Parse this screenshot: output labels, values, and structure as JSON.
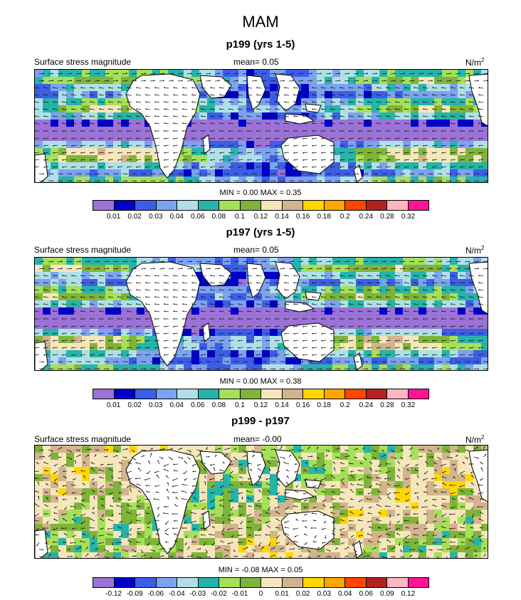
{
  "figure_title": "MAM",
  "colors": {
    "land": "#ffffff",
    "arrow": "#1a1a1a",
    "palette": [
      "#9b72d6",
      "#0000c8",
      "#3c5ee6",
      "#7ca2f0",
      "#b0e0e6",
      "#26b4aa",
      "#a6e05a",
      "#7fb43a",
      "#f5e6bc",
      "#d2b48c",
      "#ffd700",
      "#ffa500",
      "#ff4500",
      "#b22222",
      "#ffb6c1",
      "#ff1493"
    ]
  },
  "chart_data": [
    {
      "type": "heatmap",
      "title": "p199 (yrs 1-5)",
      "left_label": "Surface stress magnitude",
      "mean_text": "mean=   0.05",
      "units_base": "N/m",
      "units_exp": "2",
      "min_max_text": "MIN =   0.00 MAX =   0.35",
      "colorbar_labels": [
        "0.01",
        "0.02",
        "0.03",
        "0.04",
        "0.06",
        "0.08",
        "0.1",
        "0.12",
        "0.14",
        "0.16",
        "0.18",
        "0.2",
        "0.24",
        "0.28",
        "0.32"
      ],
      "min": 0.0,
      "max": 0.35,
      "mean": 0.05
    },
    {
      "type": "heatmap",
      "title": "p197 (yrs 1-5)",
      "left_label": "Surface stress magnitude",
      "mean_text": "mean=   0.05",
      "units_base": "N/m",
      "units_exp": "2",
      "min_max_text": "MIN =   0.00 MAX =   0.38",
      "colorbar_labels": [
        "0.01",
        "0.02",
        "0.03",
        "0.04",
        "0.06",
        "0.08",
        "0.1",
        "0.12",
        "0.14",
        "0.16",
        "0.18",
        "0.2",
        "0.24",
        "0.28",
        "0.32"
      ],
      "min": 0.0,
      "max": 0.38,
      "mean": 0.05
    },
    {
      "type": "heatmap",
      "title": "p199 - p197",
      "left_label": "Surface stress magnitude",
      "mean_text": "mean=  -0.00",
      "units_base": "N/m",
      "units_exp": "2",
      "min_max_text": "MIN =  -0.08 MAX =   0.05",
      "colorbar_labels": [
        "-0.12",
        "-0.09",
        "-0.06",
        "-0.04",
        "-0.03",
        "-0.02",
        "-0.01",
        "0",
        "0.01",
        "0.02",
        "0.03",
        "0.04",
        "0.06",
        "0.09",
        "0.12"
      ],
      "min": -0.08,
      "max": 0.05,
      "mean": -0.0
    }
  ]
}
